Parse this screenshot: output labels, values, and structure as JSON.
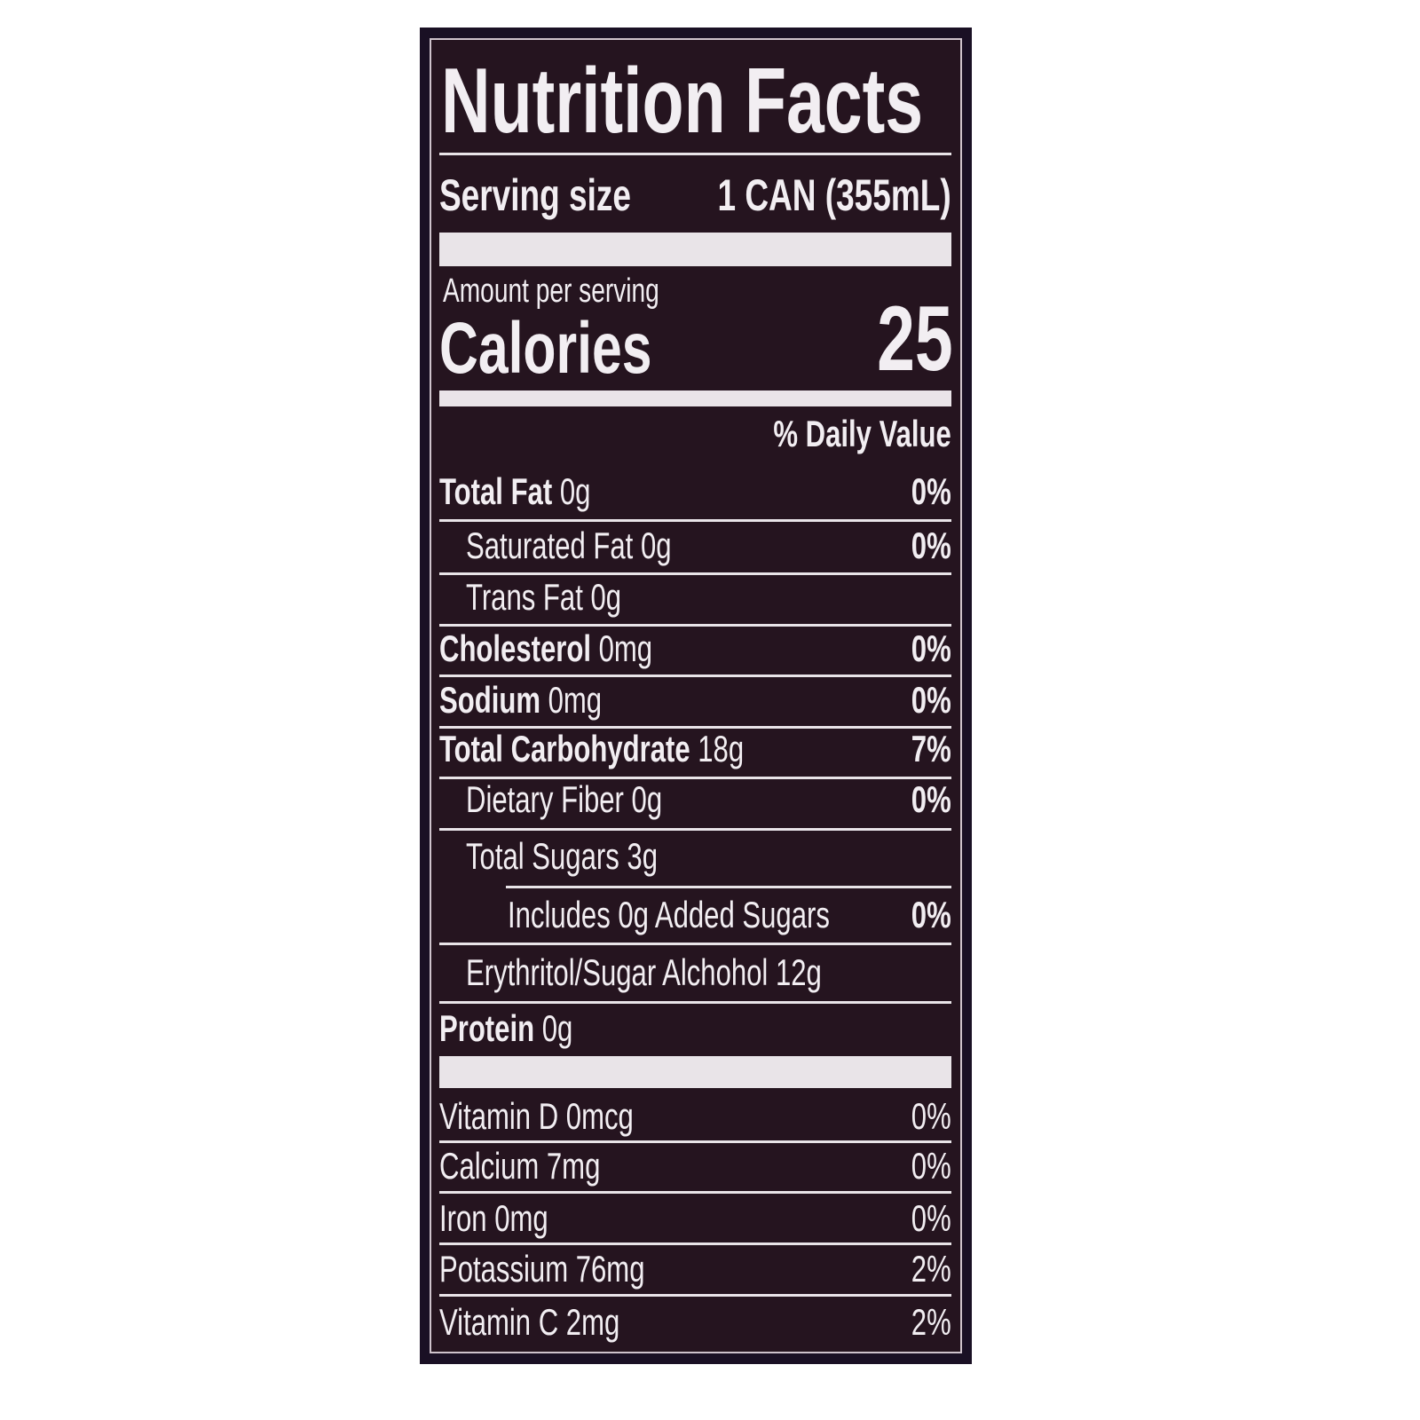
{
  "title": "Nutrition Facts",
  "serving": {
    "label": "Serving size",
    "value": "1 CAN (355mL)"
  },
  "amount_per_serving": "Amount per serving",
  "calories": {
    "label": "Calories",
    "value": "25"
  },
  "daily_value_header": "% Daily Value",
  "nutrients": [
    {
      "name": "Total Fat",
      "amount": "0g",
      "dv": "0%",
      "bold": true,
      "indent": 0
    },
    {
      "name": "Saturated Fat",
      "amount": "0g",
      "dv": "0%",
      "bold": false,
      "indent": 1
    },
    {
      "name": "Trans Fat",
      "amount": "0g",
      "dv": "",
      "bold": false,
      "indent": 1
    },
    {
      "name": "Cholesterol",
      "amount": "0mg",
      "dv": "0%",
      "bold": true,
      "indent": 0
    },
    {
      "name": "Sodium",
      "amount": "0mg",
      "dv": "0%",
      "bold": true,
      "indent": 0
    },
    {
      "name": "Total Carbohydrate",
      "amount": "18g",
      "dv": "7%",
      "bold": true,
      "indent": 0
    },
    {
      "name": "Dietary Fiber",
      "amount": "0g",
      "dv": "0%",
      "bold": false,
      "indent": 1
    },
    {
      "name": "Total Sugars",
      "amount": "3g",
      "dv": "",
      "bold": false,
      "indent": 1
    },
    {
      "name": "Includes 0g Added Sugars",
      "amount": "",
      "dv": "0%",
      "bold": false,
      "indent": 2
    },
    {
      "name": "Erythritol/Sugar Alchohol",
      "amount": "12g",
      "dv": "",
      "bold": false,
      "indent": 1
    },
    {
      "name": "Protein",
      "amount": "0g",
      "dv": "",
      "bold": true,
      "indent": 0
    }
  ],
  "vitamins": [
    {
      "name": "Vitamin D",
      "amount": "0mcg",
      "dv": "0%"
    },
    {
      "name": "Calcium",
      "amount": "7mg",
      "dv": "0%"
    },
    {
      "name": "Iron",
      "amount": "0mg",
      "dv": "0%"
    },
    {
      "name": "Potassium",
      "amount": "76mg",
      "dv": "2%"
    },
    {
      "name": "Vitamin C",
      "amount": "2mg",
      "dv": "2%"
    }
  ],
  "colors": {
    "background": "#25141f",
    "text": "#f2eef2",
    "frame": "#1a1024"
  }
}
